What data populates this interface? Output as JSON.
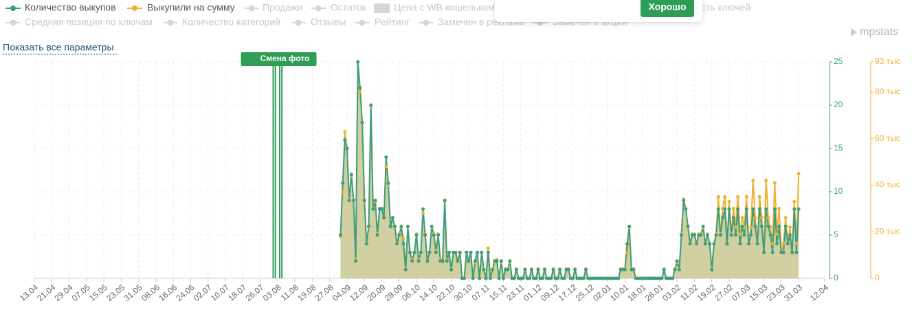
{
  "legend_inactive_row1": [
    "Продажи",
    "Остаток",
    "Цена с WB кошельком",
    "сть ключей"
  ],
  "legend_inactive_row2": [
    "Средняя позиция по ключам",
    "Количество категорий",
    "Отзывы",
    "Рейтинг",
    "Замечен в рекламе",
    "Замечен в акции"
  ],
  "popup": {
    "button": "Хорошо"
  },
  "logo": "mpstats",
  "link": "Показать все параметры",
  "chart_data": {
    "type": "line",
    "annotation": {
      "label": "Смена фото",
      "color": "#2e9e57",
      "dates": [
        "01.08",
        "02.08",
        "04.08",
        "05.08"
      ]
    },
    "categories": [
      "13.04",
      "14.04",
      "15.04",
      "16.04",
      "17.04",
      "18.04",
      "19.04",
      "20.04",
      "21.04",
      "22.04",
      "23.04",
      "24.04",
      "25.04",
      "26.04",
      "27.04",
      "28.04",
      "29.04",
      "30.04",
      "01.05",
      "02.05",
      "03.05",
      "04.05",
      "05.05",
      "06.05",
      "07.05",
      "08.05",
      "09.05",
      "10.05",
      "11.05",
      "12.05",
      "13.05",
      "14.05",
      "15.05",
      "16.05",
      "17.05",
      "18.05",
      "19.05",
      "20.05",
      "21.05",
      "22.05",
      "23.05",
      "24.05",
      "25.05",
      "26.05",
      "27.05",
      "28.05",
      "29.05",
      "30.05",
      "31.05",
      "01.06",
      "02.06",
      "03.06",
      "04.06",
      "05.06",
      "06.06",
      "07.06",
      "08.06",
      "09.06",
      "10.06",
      "11.06",
      "12.06",
      "13.06",
      "14.06",
      "15.06",
      "16.06",
      "17.06",
      "18.06",
      "19.06",
      "20.06",
      "21.06",
      "22.06",
      "23.06",
      "24.06",
      "25.06",
      "26.06",
      "27.06",
      "28.06",
      "29.06",
      "30.06",
      "01.07",
      "02.07",
      "03.07",
      "04.07",
      "05.07",
      "06.07",
      "07.07",
      "08.07",
      "09.07",
      "10.07",
      "11.07",
      "12.07",
      "13.07",
      "14.07",
      "15.07",
      "16.07",
      "17.07",
      "18.07",
      "19.07",
      "20.07",
      "21.07",
      "22.07",
      "23.07",
      "24.07",
      "25.07",
      "26.07",
      "27.07",
      "28.07",
      "29.07",
      "30.07",
      "31.07",
      "01.08",
      "02.08",
      "03.08",
      "04.08",
      "05.08",
      "06.08",
      "07.08",
      "08.08",
      "09.08",
      "10.08",
      "11.08",
      "12.08",
      "13.08",
      "14.08",
      "15.08",
      "16.08",
      "17.08",
      "18.08",
      "19.08",
      "20.08",
      "21.08",
      "22.08",
      "23.08",
      "24.08",
      "25.08",
      "26.08",
      "27.08",
      "28.08",
      "29.08",
      "30.08",
      "31.08",
      "01.09",
      "02.09",
      "03.09",
      "04.09",
      "05.09",
      "06.09",
      "07.09",
      "08.09",
      "09.09",
      "10.09",
      "11.09",
      "12.09",
      "13.09",
      "14.09",
      "15.09",
      "16.09",
      "17.09",
      "18.09",
      "19.09",
      "20.09",
      "21.09",
      "22.09",
      "23.09",
      "24.09",
      "25.09",
      "26.09",
      "27.09",
      "28.09",
      "29.09",
      "30.09",
      "01.10",
      "02.10",
      "03.10",
      "04.10",
      "05.10",
      "06.10",
      "07.10",
      "08.10",
      "09.10",
      "10.10",
      "11.10",
      "12.10",
      "13.10",
      "14.10",
      "15.10",
      "16.10",
      "17.10",
      "18.10",
      "19.10",
      "20.10",
      "21.10",
      "22.10",
      "23.10",
      "24.10",
      "25.10",
      "26.10",
      "27.10",
      "28.10",
      "29.10",
      "30.10",
      "31.10",
      "01.11",
      "02.11",
      "03.11",
      "04.11",
      "05.11",
      "06.11",
      "07.11",
      "08.11",
      "09.11",
      "10.11",
      "11.11",
      "12.11",
      "13.11",
      "14.11",
      "15.11",
      "16.11",
      "17.11",
      "18.11",
      "19.11",
      "20.11",
      "21.11",
      "22.11",
      "23.11",
      "24.11",
      "25.11",
      "26.11",
      "27.11",
      "28.11",
      "29.11",
      "30.11",
      "01.12",
      "02.12",
      "03.12",
      "04.12",
      "05.12",
      "06.12",
      "07.12",
      "08.12",
      "09.12",
      "10.12",
      "11.12",
      "12.12",
      "13.12",
      "14.12",
      "15.12",
      "16.12",
      "17.12",
      "18.12",
      "19.12",
      "20.12",
      "21.12",
      "22.12",
      "23.12",
      "24.12",
      "25.12",
      "26.12",
      "27.12",
      "28.12",
      "29.12",
      "30.12",
      "31.12",
      "01.01",
      "02.01",
      "03.01",
      "04.01",
      "05.01",
      "06.01",
      "07.01",
      "08.01",
      "09.01",
      "10.01",
      "11.01",
      "12.01",
      "13.01",
      "14.01",
      "15.01",
      "16.01",
      "17.01",
      "18.01",
      "19.01",
      "20.01",
      "21.01",
      "22.01",
      "23.01",
      "24.01",
      "25.01",
      "26.01",
      "27.01",
      "28.01",
      "29.01",
      "30.01",
      "31.01",
      "01.02",
      "02.02",
      "03.02",
      "04.02",
      "05.02",
      "06.02",
      "07.02",
      "08.02",
      "09.02",
      "10.02",
      "11.02",
      "12.02",
      "13.02",
      "14.02",
      "15.02",
      "16.02",
      "17.02",
      "18.02",
      "19.02",
      "20.02",
      "21.02",
      "22.02",
      "23.02",
      "24.02",
      "25.02",
      "26.02",
      "27.02",
      "28.02",
      "01.03",
      "02.03",
      "03.03",
      "04.03",
      "05.03",
      "06.03",
      "07.03",
      "08.03",
      "09.03",
      "10.03",
      "11.03",
      "12.03",
      "13.03",
      "14.03",
      "15.03",
      "16.03",
      "17.03",
      "18.03",
      "19.03",
      "20.03",
      "21.03",
      "22.03",
      "23.03",
      "24.03",
      "25.03",
      "26.03",
      "27.03",
      "28.03",
      "29.03",
      "30.03",
      "31.03",
      "01.04",
      "02.04",
      "03.04",
      "04.04",
      "05.04",
      "06.04",
      "07.04",
      "08.04",
      "09.04",
      "10.04",
      "11.04",
      "12.04"
    ],
    "xticks": [
      "13.04",
      "21.04",
      "29.04",
      "07.05",
      "15.05",
      "23.05",
      "31.05",
      "08.06",
      "16.06",
      "24.06",
      "02.07",
      "10.07",
      "18.07",
      "26.07",
      "03.08",
      "11.08",
      "19.08",
      "27.08",
      "04.09",
      "12.09",
      "20.09",
      "28.09",
      "06.10",
      "14.10",
      "22.10",
      "30.10",
      "07.11",
      "15.11",
      "23.11",
      "01.12",
      "09.12",
      "17.12",
      "25.12",
      "02.01",
      "10.01",
      "18.01",
      "26.01",
      "03.02",
      "11.02",
      "19.02",
      "27.02",
      "07.03",
      "15.03",
      "23.03",
      "31.03",
      "12.04"
    ],
    "ylim": [
      0,
      25
    ],
    "yticks": [
      0,
      5,
      10,
      15,
      20,
      25
    ],
    "axis_color": "#3a9e7f",
    "y2lim": [
      0,
      93000
    ],
    "y2ticks": [
      0,
      {
        "value": 20000,
        "label": "20 тыс"
      },
      {
        "value": 40000,
        "label": "40 тыс"
      },
      {
        "value": 60000,
        "label": "60 тыс"
      },
      {
        "value": 80000,
        "label": "80 тыс"
      },
      {
        "value": 93000,
        "label": "93 тыс"
      }
    ],
    "axis2_color": "#f0b030",
    "grid": true,
    "series": [
      {
        "name": "Количество выкупов",
        "color": "#3a9e7f",
        "fill": "#c9c892",
        "values": [
          null,
          null,
          null,
          null,
          null,
          null,
          null,
          null,
          null,
          null,
          null,
          null,
          null,
          null,
          null,
          null,
          null,
          null,
          null,
          null,
          null,
          null,
          null,
          null,
          null,
          null,
          null,
          null,
          null,
          null,
          null,
          null,
          null,
          null,
          null,
          null,
          null,
          null,
          null,
          null,
          null,
          null,
          null,
          null,
          null,
          null,
          null,
          null,
          null,
          null,
          null,
          null,
          null,
          null,
          null,
          null,
          null,
          null,
          null,
          null,
          null,
          null,
          null,
          null,
          null,
          null,
          null,
          null,
          null,
          null,
          null,
          null,
          null,
          null,
          null,
          null,
          null,
          null,
          null,
          null,
          null,
          null,
          null,
          null,
          null,
          null,
          null,
          null,
          null,
          null,
          null,
          null,
          null,
          null,
          null,
          null,
          null,
          null,
          null,
          null,
          null,
          null,
          null,
          null,
          null,
          null,
          null,
          null,
          null,
          null,
          null,
          null,
          null,
          null,
          null,
          null,
          null,
          null,
          null,
          null,
          null,
          null,
          null,
          null,
          null,
          null,
          null,
          null,
          null,
          null,
          null,
          null,
          null,
          null,
          null,
          null,
          null,
          null,
          null,
          null,
          null,
          5,
          11,
          16,
          15,
          9,
          12,
          9,
          2,
          25,
          22,
          18,
          9,
          4,
          6,
          20,
          8,
          9,
          5,
          8,
          8,
          7,
          14,
          11,
          6,
          7,
          6,
          4,
          5,
          6,
          4,
          1,
          6,
          3,
          2,
          3,
          5,
          2,
          3,
          8,
          5,
          2,
          3,
          6,
          5,
          3,
          5,
          2,
          2,
          9,
          2,
          3,
          1,
          3,
          3,
          2,
          3,
          0,
          0,
          3,
          2,
          3,
          0,
          2,
          3,
          0,
          3,
          1,
          0,
          3,
          0,
          1,
          2,
          2,
          0,
          2,
          0,
          1,
          1,
          2,
          0,
          0,
          1,
          0,
          0,
          0,
          1,
          0,
          0,
          1,
          0,
          0,
          1,
          0,
          0,
          1,
          0,
          0,
          0,
          1,
          0,
          0,
          1,
          0,
          0,
          1,
          1,
          0,
          0,
          1,
          0,
          0,
          0,
          0,
          1,
          0,
          0,
          0,
          0,
          0,
          0,
          0,
          0,
          0,
          0,
          0,
          0,
          0,
          0,
          0,
          1,
          1,
          1,
          4,
          6,
          1,
          1,
          0,
          0,
          0,
          0,
          0,
          0,
          0,
          0,
          0,
          0,
          0,
          0,
          0,
          1,
          0,
          0,
          0,
          0,
          1,
          2,
          1,
          5,
          9,
          8,
          6,
          4,
          5,
          5,
          4,
          5,
          5,
          6,
          4,
          5,
          4,
          1,
          4,
          5,
          8,
          5,
          7,
          8,
          4,
          8,
          5,
          7,
          5,
          8,
          4,
          6,
          5,
          8,
          4,
          5,
          8,
          6,
          4,
          8,
          6,
          3,
          8,
          6,
          5,
          3,
          8,
          4,
          6,
          3,
          3,
          6,
          4,
          5,
          3,
          8,
          3,
          8,
          null,
          null,
          null,
          null,
          null,
          null,
          null,
          null,
          null,
          null,
          null,
          null
        ]
      },
      {
        "name": "Выкупили на сумму",
        "color": "#f0b030",
        "axis": "y2",
        "values": [
          null,
          null,
          null,
          null,
          null,
          null,
          null,
          null,
          null,
          null,
          null,
          null,
          null,
          null,
          null,
          null,
          null,
          null,
          null,
          null,
          null,
          null,
          null,
          null,
          null,
          null,
          null,
          null,
          null,
          null,
          null,
          null,
          null,
          null,
          null,
          null,
          null,
          null,
          null,
          null,
          null,
          null,
          null,
          null,
          null,
          null,
          null,
          null,
          null,
          null,
          null,
          null,
          null,
          null,
          null,
          null,
          null,
          null,
          null,
          null,
          null,
          null,
          null,
          null,
          null,
          null,
          null,
          null,
          null,
          null,
          null,
          null,
          null,
          null,
          null,
          null,
          null,
          null,
          null,
          null,
          null,
          null,
          null,
          null,
          null,
          null,
          null,
          null,
          null,
          null,
          null,
          null,
          null,
          null,
          null,
          null,
          null,
          null,
          null,
          null,
          null,
          null,
          null,
          null,
          null,
          null,
          null,
          null,
          null,
          null,
          null,
          null,
          null,
          null,
          null,
          null,
          null,
          null,
          null,
          null,
          null,
          null,
          null,
          null,
          null,
          null,
          null,
          null,
          null,
          null,
          null,
          null,
          null,
          null,
          null,
          null,
          null,
          null,
          null,
          null,
          null,
          18000,
          37000,
          63000,
          56000,
          34000,
          44000,
          34000,
          8000,
          93000,
          80000,
          67000,
          33000,
          15000,
          22000,
          74000,
          30000,
          33000,
          19000,
          30000,
          30000,
          26000,
          48000,
          40000,
          22000,
          26000,
          22000,
          15000,
          19000,
          22000,
          17000,
          4000,
          22000,
          11000,
          8000,
          11000,
          19000,
          8000,
          11000,
          28000,
          19000,
          7000,
          11000,
          22000,
          19000,
          12000,
          19000,
          8000,
          7000,
          33000,
          8000,
          11000,
          4000,
          11000,
          11000,
          7000,
          11000,
          0,
          0,
          11000,
          7000,
          11000,
          0,
          7000,
          11000,
          0,
          11000,
          4000,
          0,
          13000,
          0,
          4000,
          7000,
          8000,
          0,
          7000,
          0,
          4000,
          4000,
          7000,
          0,
          0,
          4000,
          0,
          0,
          0,
          4000,
          0,
          0,
          4000,
          0,
          0,
          4000,
          0,
          0,
          4000,
          0,
          0,
          0,
          4000,
          0,
          0,
          4000,
          0,
          0,
          4000,
          4000,
          0,
          0,
          4000,
          0,
          0,
          0,
          0,
          4000,
          0,
          0,
          0,
          0,
          0,
          0,
          0,
          0,
          0,
          0,
          0,
          0,
          0,
          0,
          0,
          4000,
          4000,
          4000,
          11000,
          22000,
          4000,
          4000,
          0,
          0,
          0,
          0,
          0,
          0,
          0,
          0,
          0,
          0,
          0,
          0,
          0,
          4000,
          0,
          0,
          0,
          0,
          4000,
          7000,
          4000,
          19000,
          34000,
          30000,
          22000,
          15000,
          19000,
          19000,
          15000,
          19000,
          19000,
          22000,
          15000,
          19000,
          15000,
          4000,
          15000,
          19000,
          35000,
          19000,
          30000,
          35000,
          15000,
          33000,
          19000,
          30000,
          22000,
          35000,
          19000,
          26000,
          22000,
          35000,
          15000,
          22000,
          42000,
          26000,
          15000,
          35000,
          26000,
          11000,
          42000,
          26000,
          22000,
          15000,
          41000,
          19000,
          30000,
          11000,
          15000,
          26000,
          15000,
          22000,
          11000,
          33000,
          15000,
          45000,
          null,
          null,
          null,
          null,
          null,
          null,
          null,
          null,
          null,
          null,
          null,
          null
        ]
      }
    ]
  }
}
